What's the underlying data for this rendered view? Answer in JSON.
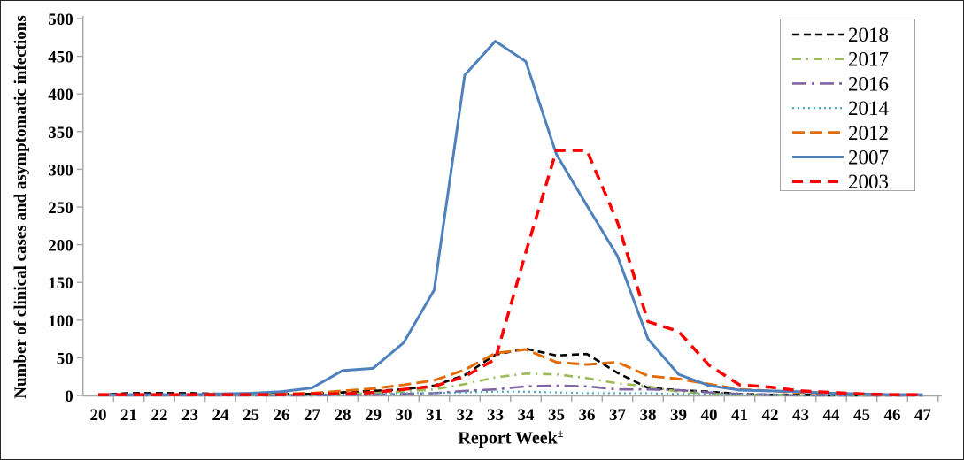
{
  "chart_data": {
    "type": "line",
    "title": "",
    "xlabel": "Report Week",
    "xlabel_superscript": "±",
    "ylabel": "Number of clinical cases and asymptomatic infections",
    "x": [
      20,
      21,
      22,
      23,
      24,
      25,
      26,
      27,
      28,
      29,
      30,
      31,
      32,
      33,
      34,
      35,
      36,
      37,
      38,
      39,
      40,
      41,
      42,
      43,
      44,
      45,
      46,
      47
    ],
    "yticks": [
      0,
      50,
      100,
      150,
      200,
      250,
      300,
      350,
      400,
      450,
      500
    ],
    "ylim": [
      0,
      500
    ],
    "xlim": [
      20,
      47
    ],
    "grid": false,
    "legend_position": "top-right",
    "axis_color": "#a6a6a6",
    "text_color": "#000000",
    "background": "#ffffff",
    "legend_entries": [
      "2018",
      "2017",
      "2016",
      "2014",
      "2012",
      "2007",
      "2003"
    ],
    "series": [
      {
        "name": "2018",
        "color": "#000000",
        "style": "dashed",
        "width": 2.6,
        "dash": "8 5",
        "values": [
          1,
          3,
          3,
          3,
          2,
          2,
          2,
          2,
          4,
          6,
          8,
          13,
          27,
          54,
          62,
          53,
          55,
          30,
          10,
          7,
          5,
          2,
          1,
          1,
          0,
          0,
          0,
          0
        ]
      },
      {
        "name": "2017",
        "color": "#9BBB59",
        "style": "dash-dot",
        "width": 2.6,
        "dash": "10 6 2 6",
        "values": [
          0,
          0,
          0,
          0,
          0,
          1,
          1,
          1,
          2,
          3,
          5,
          8,
          15,
          24,
          29,
          28,
          23,
          16,
          12,
          5,
          2,
          1,
          1,
          0,
          0,
          0,
          0,
          0
        ]
      },
      {
        "name": "2016",
        "color": "#8064A2",
        "style": "long-dash-dot",
        "width": 2.6,
        "dash": "16 6 3 6",
        "values": [
          0,
          0,
          0,
          0,
          0,
          0,
          0,
          0,
          1,
          1,
          2,
          3,
          6,
          8,
          12,
          13,
          12,
          8,
          8,
          7,
          4,
          2,
          1,
          0,
          0,
          0,
          0,
          0
        ]
      },
      {
        "name": "2014",
        "color": "#4BACC6",
        "style": "dotted",
        "width": 2.2,
        "dash": "2 4",
        "values": [
          0,
          0,
          0,
          0,
          0,
          0,
          0,
          0,
          1,
          2,
          3,
          3,
          4,
          5,
          5,
          4,
          3,
          3,
          3,
          2,
          2,
          1,
          1,
          0,
          0,
          0,
          0,
          0
        ]
      },
      {
        "name": "2012",
        "color": "#E36C09",
        "style": "dashed",
        "width": 3,
        "dash": "14 6",
        "values": [
          1,
          1,
          1,
          1,
          1,
          1,
          2,
          3,
          6,
          9,
          14,
          20,
          34,
          56,
          61,
          44,
          41,
          44,
          26,
          22,
          15,
          8,
          6,
          4,
          3,
          2,
          1,
          1
        ]
      },
      {
        "name": "2007",
        "color": "#4F81BD",
        "style": "solid",
        "width": 3,
        "dash": "",
        "values": [
          1,
          1,
          1,
          1,
          2,
          3,
          5,
          10,
          33,
          36,
          70,
          140,
          425,
          470,
          443,
          320,
          252,
          185,
          75,
          28,
          13,
          7,
          6,
          5,
          3,
          2,
          1,
          1
        ]
      },
      {
        "name": "2003",
        "color": "#FF0000",
        "style": "dashed",
        "width": 3.5,
        "dash": "12 8",
        "values": [
          1,
          1,
          1,
          1,
          1,
          1,
          1,
          2,
          2,
          4,
          8,
          12,
          25,
          48,
          190,
          325,
          325,
          230,
          98,
          85,
          40,
          14,
          11,
          6,
          4,
          2,
          1,
          1
        ]
      }
    ]
  }
}
